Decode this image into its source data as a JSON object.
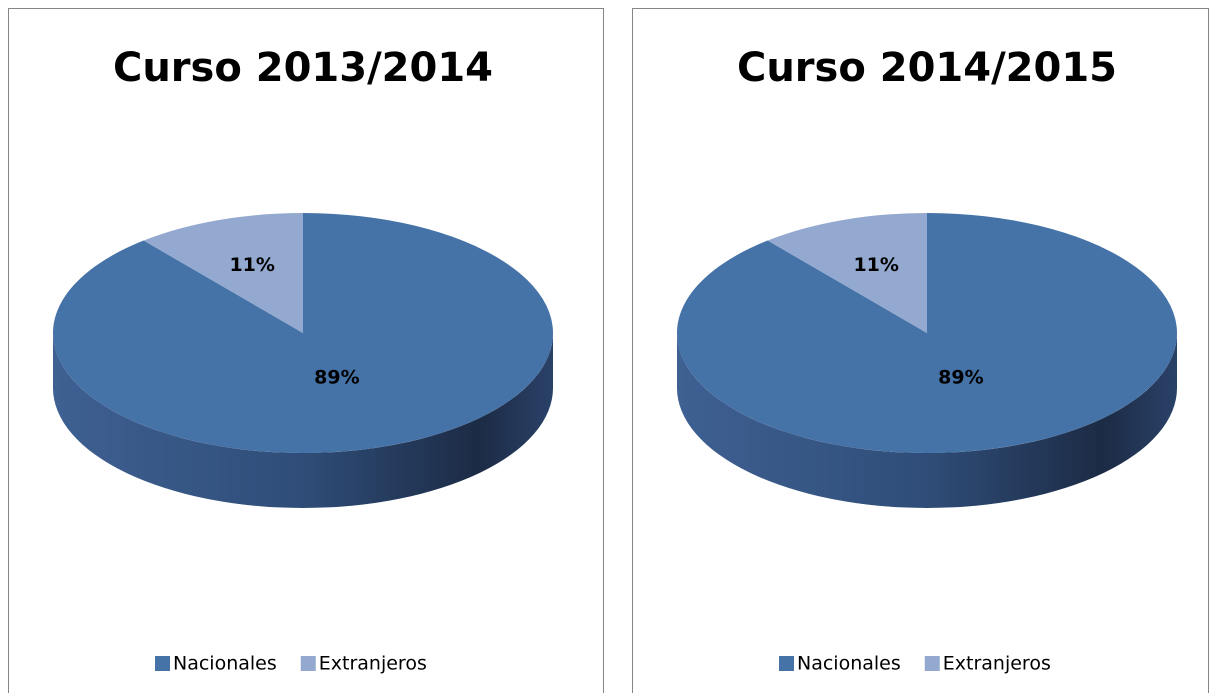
{
  "chart_data": [
    {
      "type": "pie",
      "title": "Curso 2013/2014",
      "categories": [
        "Nacionales",
        "Extranjeros"
      ],
      "values": [
        89,
        11
      ],
      "value_labels": [
        "89%",
        "11%"
      ],
      "colors": [
        "#4572a7",
        "#93a9cf"
      ],
      "legend": "bottom"
    },
    {
      "type": "pie",
      "title": "Curso 2014/2015",
      "categories": [
        "Nacionales",
        "Extranjeros"
      ],
      "values": [
        89,
        11
      ],
      "value_labels": [
        "89%",
        "11%"
      ],
      "colors": [
        "#4572a7",
        "#93a9cf"
      ],
      "legend": "bottom"
    }
  ]
}
